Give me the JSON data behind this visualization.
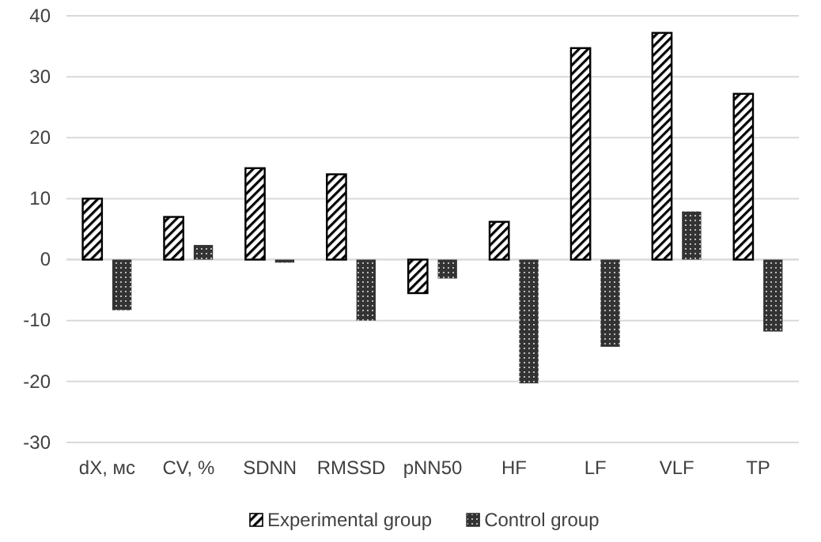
{
  "chart_data": {
    "type": "bar",
    "categories": [
      "dX, мс",
      "CV, %",
      "SDNN",
      "RMSSD",
      "pNN50",
      "HF",
      "LF",
      "VLF",
      "TP"
    ],
    "series": [
      {
        "name": "Experimental group",
        "color": "#000000",
        "values": [
          10,
          7,
          15,
          14,
          -5.5,
          6.2,
          34.7,
          37.2,
          27.2
        ]
      },
      {
        "name": "Control group",
        "color": "#333333",
        "values": [
          -8.3,
          2.4,
          -0.5,
          -10,
          -3.1,
          -20.3,
          -14.3,
          7.9,
          -11.8
        ]
      }
    ],
    "ylim": [
      -30,
      40
    ],
    "yticks": [
      -30,
      -20,
      -10,
      0,
      10,
      20,
      30,
      40
    ],
    "grid": "y",
    "legend": "bottom"
  }
}
